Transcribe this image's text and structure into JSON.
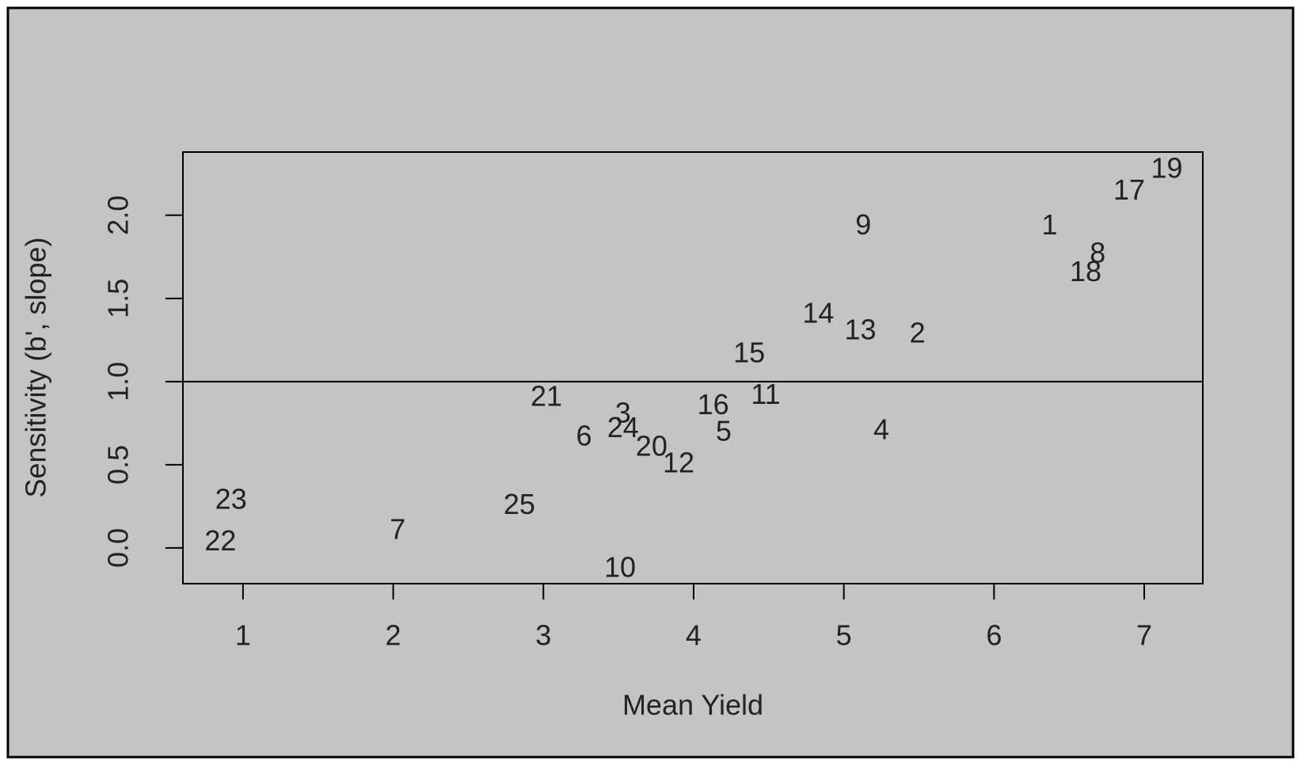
{
  "chart_data": {
    "type": "scatter",
    "xlabel": "Mean Yield",
    "ylabel": "Sensitivity (b', slope)",
    "labels": [
      "1",
      "2",
      "3",
      "4",
      "5",
      "6",
      "7",
      "8",
      "9",
      "10",
      "11",
      "12",
      "13",
      "14",
      "15",
      "16",
      "17",
      "18",
      "19",
      "20",
      "21",
      "22",
      "23",
      "24",
      "25"
    ],
    "x": [
      6.37,
      5.49,
      3.53,
      5.25,
      4.2,
      3.27,
      2.03,
      6.69,
      5.13,
      3.51,
      4.48,
      3.9,
      5.11,
      4.83,
      4.37,
      4.13,
      6.9,
      6.61,
      7.15,
      3.72,
      3.02,
      0.85,
      0.92,
      3.53,
      2.84
    ],
    "values": [
      1.93,
      1.28,
      0.8,
      0.7,
      0.69,
      0.66,
      0.1,
      1.76,
      1.93,
      -0.13,
      0.91,
      0.5,
      1.3,
      1.4,
      1.16,
      0.85,
      2.14,
      1.65,
      2.27,
      0.6,
      0.9,
      0.03,
      0.28,
      0.71,
      0.25
    ],
    "hline": 1,
    "xlim": [
      0.6,
      7.39
    ],
    "ylim": [
      -0.215,
      2.38
    ],
    "xticks": [
      1,
      2,
      3,
      4,
      5,
      6,
      7
    ],
    "yticks": [
      {
        "value": 0,
        "label": "0.0"
      },
      0.5,
      {
        "value": 1,
        "label": "1.0"
      },
      1.5,
      {
        "value": 2,
        "label": "2.0"
      }
    ]
  }
}
